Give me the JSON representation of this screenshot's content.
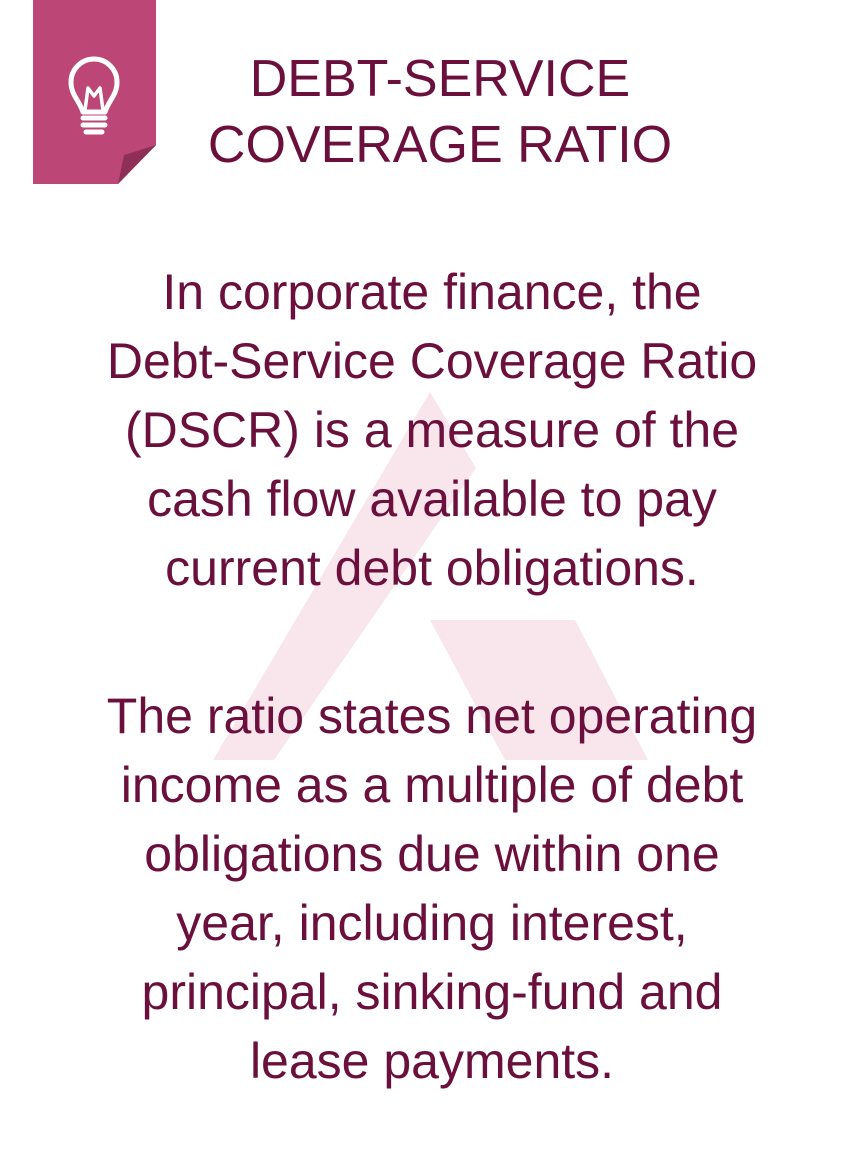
{
  "theme": {
    "accent": "#bc4776",
    "accent_fold": "#8e2f57",
    "text": "#6b0f3d",
    "watermark": "#f9e6ec"
  },
  "badge": {
    "icon": "lightbulb-icon"
  },
  "title": "DEBT-SERVICE\nCOVERAGE RATIO",
  "paragraphs": {
    "p1": "In corporate finance, the\nDebt-Service Coverage Ratio\n(DSCR) is a measure of the\ncash flow available to pay\ncurrent debt obligations.",
    "p2": "The ratio states net operating\nincome as a multiple of debt\nobligations due within one\nyear, including interest,\nprincipal, sinking-fund and\nlease payments."
  }
}
